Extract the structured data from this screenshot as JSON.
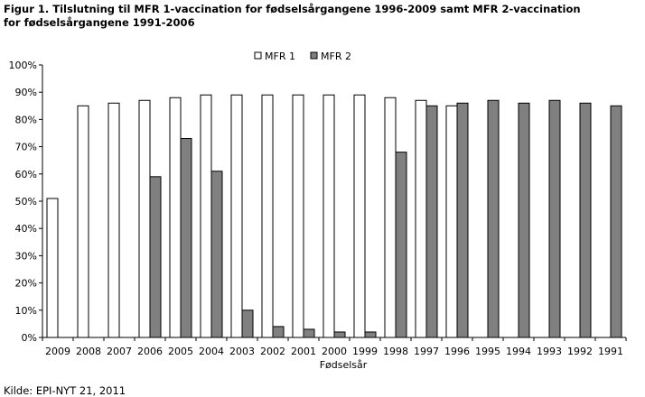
{
  "title_line1": "Figur 1. Tilslutning til MFR 1-vaccination for fødselsårgangene 1996-2009 samt MFR 2-vaccination",
  "title_line2": "for fødselsårgangene 1991-2006",
  "source": "Kilde: EPI-NYT 21, 2011",
  "colors": {
    "mfr1": "#ffffff",
    "mfr2": "#808080",
    "outline": "#000000"
  },
  "chart_data": {
    "type": "bar",
    "xlabel": "Fødselsår",
    "ylabel": "",
    "ylim": [
      0,
      100
    ],
    "y_ticks": [
      "0%",
      "10%",
      "20%",
      "30%",
      "40%",
      "50%",
      "60%",
      "70%",
      "80%",
      "90%",
      "100%"
    ],
    "categories": [
      "2009",
      "2008",
      "2007",
      "2006",
      "2005",
      "2004",
      "2003",
      "2002",
      "2001",
      "2000",
      "1999",
      "1998",
      "1997",
      "1996",
      "1995",
      "1994",
      "1993",
      "1992",
      "1991"
    ],
    "series": [
      {
        "name": "MFR 1",
        "values": [
          51,
          85,
          86,
          87,
          88,
          89,
          89,
          89,
          89,
          89,
          89,
          88,
          87,
          85,
          null,
          null,
          null,
          null,
          null
        ]
      },
      {
        "name": "MFR 2",
        "values": [
          null,
          null,
          null,
          59,
          73,
          61,
          10,
          4,
          3,
          2,
          2,
          68,
          85,
          86,
          87,
          86,
          87,
          86,
          85
        ]
      }
    ],
    "legend_position": "top-center",
    "grid": false
  }
}
